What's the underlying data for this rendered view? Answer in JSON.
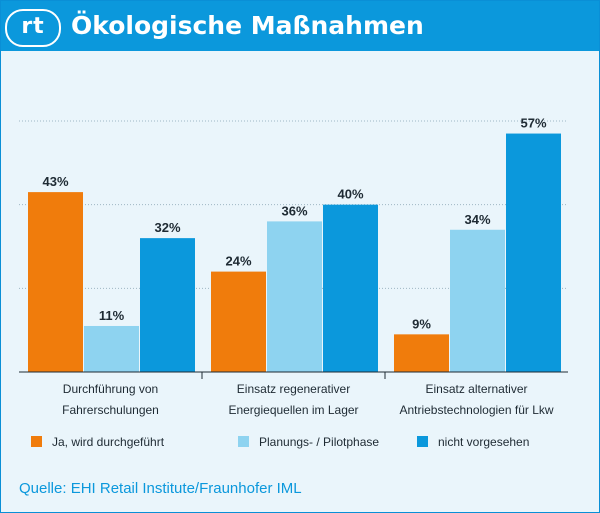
{
  "header": {
    "logo_text": "rt",
    "title": "Ökologische Maßnahmen"
  },
  "chart_data": {
    "type": "bar",
    "categories": [
      [
        "Durchführung von",
        "Fahrerschulungen"
      ],
      [
        "Einsatz regenerativer",
        "Energiequellen im Lager"
      ],
      [
        "Einsatz alternativer",
        "Antriebstechnologien für Lkw"
      ]
    ],
    "series": [
      {
        "name": "Ja, wird durchgeführt",
        "color": "#f07c0c",
        "values": [
          43,
          24,
          9
        ]
      },
      {
        "name": "Planungs- / Pilotphase",
        "color": "#8ed3f0",
        "values": [
          11,
          36,
          34
        ]
      },
      {
        "name": "nicht vorgesehen",
        "color": "#0b98dc",
        "values": [
          32,
          40,
          57
        ]
      }
    ],
    "value_suffix": "%",
    "ylim": [
      0,
      60
    ],
    "grid": true,
    "legend_position": "bottom"
  },
  "legend": [
    {
      "label": "Ja, wird durchgeführt",
      "color": "#f07c0c"
    },
    {
      "label": "Planungs- / Pilotphase",
      "color": "#8ed3f0"
    },
    {
      "label": "nicht vorgesehen",
      "color": "#0b98dc"
    }
  ],
  "source": "Quelle: EHI Retail Institute/Fraunhofer IML"
}
